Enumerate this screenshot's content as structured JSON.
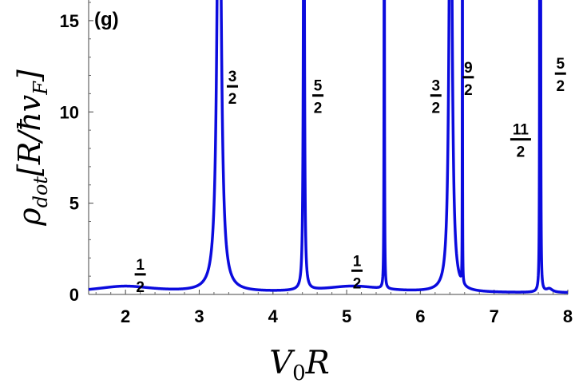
{
  "chart_data": {
    "type": "line",
    "panel_label": "(g)",
    "xlabel": {
      "base": "V",
      "sub": "0",
      "rest": "R"
    },
    "ylabel": {
      "base": "ρ",
      "sub": "dot",
      "rest": "[R/ħv",
      "sub2": "F",
      "close": "]"
    },
    "xlim": [
      1.5,
      8
    ],
    "ylim": [
      0,
      16
    ],
    "xticks": [
      "2",
      "3",
      "4",
      "5",
      "6",
      "7",
      "8"
    ],
    "yticks": [
      "0",
      "5",
      "10",
      "15"
    ],
    "grid": false,
    "series_color": "#0b0bde",
    "background": 0.08,
    "peaks": [
      {
        "x": 1.99,
        "height": 0.35,
        "width": 0.5
      },
      {
        "x": 3.27,
        "height": 30,
        "width": 0.03
      },
      {
        "x": 4.42,
        "height": 30,
        "width": 0.008
      },
      {
        "x": 5.09,
        "height": 0.35,
        "width": 0.5
      },
      {
        "x": 5.51,
        "height": 30,
        "width": 0.003
      },
      {
        "x": 6.41,
        "height": 30,
        "width": 0.022
      },
      {
        "x": 6.57,
        "height": 30,
        "width": 0.0015
      },
      {
        "x": 7.62,
        "height": 30,
        "width": 0.003
      },
      {
        "x": 7.63,
        "height": 30,
        "width": 0.003
      },
      {
        "x": 7.75,
        "height": 0.2,
        "width": 0.05
      }
    ],
    "annotations": [
      {
        "x": 2.2,
        "y": 1.1,
        "num": "1",
        "den": "2"
      },
      {
        "x": 3.45,
        "y": 11.4,
        "num": "3",
        "den": "2"
      },
      {
        "x": 4.61,
        "y": 10.9,
        "num": "5",
        "den": "2"
      },
      {
        "x": 5.14,
        "y": 1.3,
        "num": "1",
        "den": "2"
      },
      {
        "x": 6.21,
        "y": 10.9,
        "num": "3",
        "den": "2"
      },
      {
        "x": 6.65,
        "y": 11.9,
        "num": "9",
        "den": "2"
      },
      {
        "x": 7.36,
        "y": 8.5,
        "num": "11",
        "den": "2"
      },
      {
        "x": 7.9,
        "y": 12.1,
        "num": "5",
        "den": "2"
      }
    ]
  }
}
